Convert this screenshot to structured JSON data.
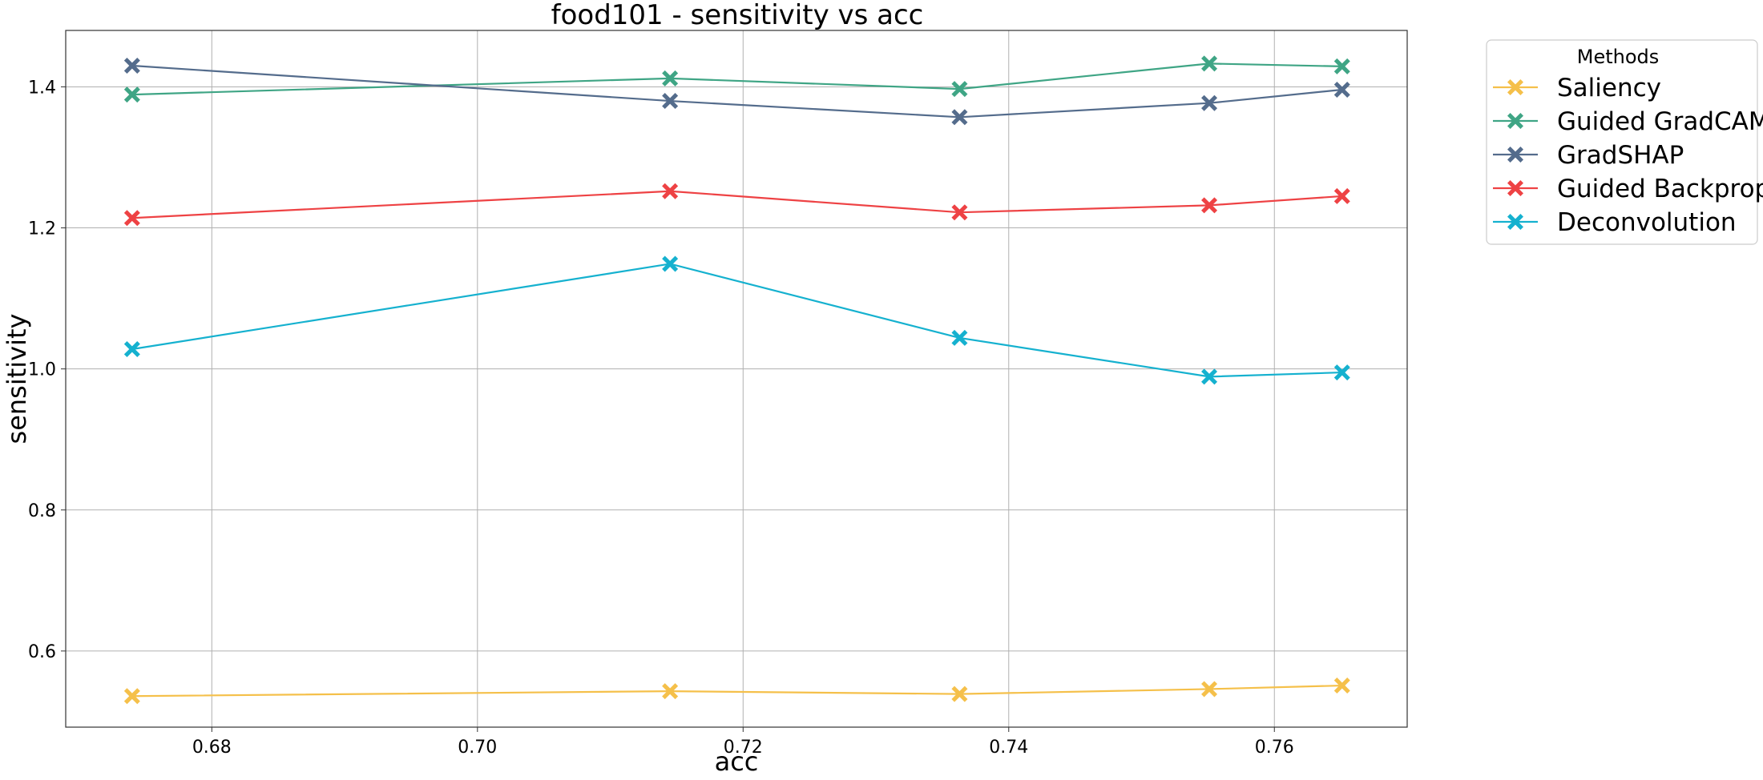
{
  "chart_data": {
    "type": "line",
    "title": "food101 - sensitivity vs acc",
    "xlabel": "acc",
    "ylabel": "sensitivity",
    "xlim": [
      0.669,
      0.77
    ],
    "ylim": [
      0.492,
      1.48
    ],
    "xticks": [
      "0.68",
      "0.70",
      "0.72",
      "0.74",
      "0.76"
    ],
    "xtick_values": [
      0.68,
      0.7,
      0.72,
      0.74,
      0.76
    ],
    "yticks": [
      "0.6",
      "0.8",
      "1.0",
      "1.2",
      "1.4"
    ],
    "ytick_values": [
      0.6,
      0.8,
      1.0,
      1.2,
      1.4
    ],
    "grid": true,
    "legend": {
      "title": "Methods",
      "placement": "outside upper right"
    },
    "x": [
      0.674,
      0.7145,
      0.7363,
      0.7551,
      0.7651
    ],
    "series": [
      {
        "name": "Saliency",
        "color": "#f5c04a",
        "marker": "x-filled",
        "values": [
          0.536,
          0.543,
          0.539,
          0.546,
          0.551
        ]
      },
      {
        "name": "Guided GradCAM",
        "color": "#3fa585",
        "marker": "x-filled",
        "values": [
          1.389,
          1.412,
          1.397,
          1.433,
          1.429
        ]
      },
      {
        "name": "GradSHAP",
        "color": "#546c8c",
        "marker": "x-filled",
        "values": [
          1.43,
          1.38,
          1.357,
          1.377,
          1.396
        ]
      },
      {
        "name": "Guided Backprop",
        "color": "#ee4244",
        "marker": "x-filled",
        "values": [
          1.214,
          1.252,
          1.222,
          1.232,
          1.245
        ]
      },
      {
        "name": "Deconvolution",
        "color": "#15b1cf",
        "marker": "x-filled",
        "values": [
          1.028,
          1.149,
          1.044,
          0.989,
          0.995
        ]
      }
    ]
  }
}
